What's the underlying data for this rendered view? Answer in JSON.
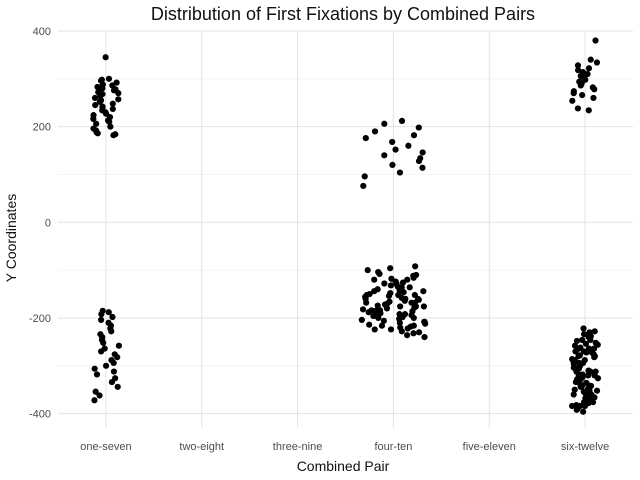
{
  "chart_data": {
    "type": "scatter",
    "title": "Distribution of First Fixations by Combined Pairs",
    "xlabel": "Combined Pair",
    "ylabel": "Y Coordinates",
    "categories": [
      "one-seven",
      "two-eight",
      "three-nine",
      "four-ten",
      "five-eleven",
      "six-twelve"
    ],
    "ylim": [
      -430,
      402
    ],
    "yticks": [
      400,
      200,
      0,
      -200,
      -400
    ],
    "grid": true,
    "point_color": "#000000",
    "series": [
      {
        "category": "one-seven",
        "points": [
          {
            "y": 345
          },
          {
            "y": 300
          },
          {
            "y": 298
          },
          {
            "y": 296
          },
          {
            "y": 292
          },
          {
            "y": 288
          },
          {
            "y": 286
          },
          {
            "y": 283
          },
          {
            "y": 280
          },
          {
            "y": 278
          },
          {
            "y": 276
          },
          {
            "y": 272
          },
          {
            "y": 270
          },
          {
            "y": 268
          },
          {
            "y": 264
          },
          {
            "y": 260
          },
          {
            "y": 257
          },
          {
            "y": 255
          },
          {
            "y": 252
          },
          {
            "y": 248
          },
          {
            "y": 245
          },
          {
            "y": 242
          },
          {
            "y": 240
          },
          {
            "y": 237
          },
          {
            "y": 234
          },
          {
            "y": 230
          },
          {
            "y": 227
          },
          {
            "y": 224
          },
          {
            "y": 220
          },
          {
            "y": 216
          },
          {
            "y": 213
          },
          {
            "y": 210
          },
          {
            "y": 206
          },
          {
            "y": 200
          },
          {
            "y": 196
          },
          {
            "y": 192
          },
          {
            "y": 188
          },
          {
            "y": 184
          },
          {
            "y": 182
          },
          {
            "y": 186
          },
          {
            "y": -185
          },
          {
            "y": -188
          },
          {
            "y": -192
          },
          {
            "y": -198
          },
          {
            "y": -204
          },
          {
            "y": -210
          },
          {
            "y": -216
          },
          {
            "y": -222
          },
          {
            "y": -228
          },
          {
            "y": -234
          },
          {
            "y": -240
          },
          {
            "y": -246
          },
          {
            "y": -252
          },
          {
            "y": -258
          },
          {
            "y": -264
          },
          {
            "y": -270
          },
          {
            "y": -276
          },
          {
            "y": -282
          },
          {
            "y": -288
          },
          {
            "y": -294
          },
          {
            "y": -300
          },
          {
            "y": -306
          },
          {
            "y": -312
          },
          {
            "y": -318
          },
          {
            "y": -326
          },
          {
            "y": -334
          },
          {
            "y": -344
          },
          {
            "y": -354
          },
          {
            "y": -362
          },
          {
            "y": -372
          }
        ]
      },
      {
        "category": "four-ten",
        "points": [
          {
            "y": 212
          },
          {
            "y": 206
          },
          {
            "y": 198
          },
          {
            "y": 190
          },
          {
            "y": 182
          },
          {
            "y": 176
          },
          {
            "y": 168
          },
          {
            "y": 160
          },
          {
            "y": 152
          },
          {
            "y": 146
          },
          {
            "y": 140
          },
          {
            "y": 134
          },
          {
            "y": 128
          },
          {
            "y": 120
          },
          {
            "y": 114
          },
          {
            "y": 104
          },
          {
            "y": 96
          },
          {
            "y": 76
          },
          {
            "y": -92
          },
          {
            "y": -96
          },
          {
            "y": -100
          },
          {
            "y": -104
          },
          {
            "y": -108
          },
          {
            "y": -112
          },
          {
            "y": -116
          },
          {
            "y": -120
          },
          {
            "y": -124
          },
          {
            "y": -128
          },
          {
            "y": -132
          },
          {
            "y": -136
          },
          {
            "y": -140
          },
          {
            "y": -144
          },
          {
            "y": -148
          },
          {
            "y": -152
          },
          {
            "y": -156
          },
          {
            "y": -160
          },
          {
            "y": -164
          },
          {
            "y": -168
          },
          {
            "y": -172
          },
          {
            "y": -176
          },
          {
            "y": -180
          },
          {
            "y": -184
          },
          {
            "y": -188
          },
          {
            "y": -192
          },
          {
            "y": -196
          },
          {
            "y": -200
          },
          {
            "y": -204
          },
          {
            "y": -208
          },
          {
            "y": -212
          },
          {
            "y": -216
          },
          {
            "y": -220
          },
          {
            "y": -224
          },
          {
            "y": -228
          },
          {
            "y": -232
          },
          {
            "y": -236
          },
          {
            "y": -240
          },
          {
            "y": -110
          },
          {
            "y": -118
          },
          {
            "y": -126
          },
          {
            "y": -134
          },
          {
            "y": -142
          },
          {
            "y": -150
          },
          {
            "y": -158
          },
          {
            "y": -166
          },
          {
            "y": -174
          },
          {
            "y": -182
          },
          {
            "y": -190
          },
          {
            "y": -198
          },
          {
            "y": -206
          },
          {
            "y": -214
          },
          {
            "y": -222
          },
          {
            "y": -230
          },
          {
            "y": -146
          },
          {
            "y": -154
          },
          {
            "y": -162
          },
          {
            "y": -170
          },
          {
            "y": -178
          },
          {
            "y": -186
          },
          {
            "y": -194
          },
          {
            "y": -202
          },
          {
            "y": -210
          },
          {
            "y": -218
          },
          {
            "y": -152
          },
          {
            "y": -160
          },
          {
            "y": -168
          },
          {
            "y": -176
          },
          {
            "y": -184
          },
          {
            "y": -192
          },
          {
            "y": -200
          },
          {
            "y": -208
          },
          {
            "y": -216
          },
          {
            "y": -224
          },
          {
            "y": -120
          },
          {
            "y": -128
          },
          {
            "y": -136
          },
          {
            "y": -144
          },
          {
            "y": -152
          },
          {
            "y": -160
          },
          {
            "y": -168
          },
          {
            "y": -176
          },
          {
            "y": -184
          },
          {
            "y": -192
          }
        ]
      },
      {
        "category": "six-twelve",
        "points": [
          {
            "y": 380
          },
          {
            "y": 340
          },
          {
            "y": 334
          },
          {
            "y": 328
          },
          {
            "y": 322
          },
          {
            "y": 318
          },
          {
            "y": 314
          },
          {
            "y": 310
          },
          {
            "y": 306
          },
          {
            "y": 302
          },
          {
            "y": 298
          },
          {
            "y": 294
          },
          {
            "y": 290
          },
          {
            "y": 286
          },
          {
            "y": 282
          },
          {
            "y": 278
          },
          {
            "y": 274
          },
          {
            "y": 270
          },
          {
            "y": 266
          },
          {
            "y": 260
          },
          {
            "y": 254
          },
          {
            "y": 238
          },
          {
            "y": 234
          },
          {
            "y": -222
          },
          {
            "y": -228
          },
          {
            "y": -234
          },
          {
            "y": -240
          },
          {
            "y": -246
          },
          {
            "y": -252
          },
          {
            "y": -258
          },
          {
            "y": -264
          },
          {
            "y": -270
          },
          {
            "y": -276
          },
          {
            "y": -282
          },
          {
            "y": -288
          },
          {
            "y": -294
          },
          {
            "y": -300
          },
          {
            "y": -306
          },
          {
            "y": -312
          },
          {
            "y": -318
          },
          {
            "y": -324
          },
          {
            "y": -330
          },
          {
            "y": -336
          },
          {
            "y": -342
          },
          {
            "y": -348
          },
          {
            "y": -354
          },
          {
            "y": -360
          },
          {
            "y": -366
          },
          {
            "y": -372
          },
          {
            "y": -378
          },
          {
            "y": -384
          },
          {
            "y": -390
          },
          {
            "y": -396
          },
          {
            "y": -230
          },
          {
            "y": -238
          },
          {
            "y": -246
          },
          {
            "y": -254
          },
          {
            "y": -262
          },
          {
            "y": -270
          },
          {
            "y": -278
          },
          {
            "y": -286
          },
          {
            "y": -294
          },
          {
            "y": -302
          },
          {
            "y": -310
          },
          {
            "y": -318
          },
          {
            "y": -326
          },
          {
            "y": -334
          },
          {
            "y": -342
          },
          {
            "y": -350
          },
          {
            "y": -358
          },
          {
            "y": -366
          },
          {
            "y": -374
          },
          {
            "y": -382
          },
          {
            "y": -264
          },
          {
            "y": -272
          },
          {
            "y": -280
          },
          {
            "y": -288
          },
          {
            "y": -296
          },
          {
            "y": -304
          },
          {
            "y": -312
          },
          {
            "y": -320
          },
          {
            "y": -328
          },
          {
            "y": -336
          },
          {
            "y": -344
          },
          {
            "y": -352
          },
          {
            "y": -360
          },
          {
            "y": -368
          },
          {
            "y": -376
          },
          {
            "y": -384
          },
          {
            "y": -392
          },
          {
            "y": -248
          },
          {
            "y": -256
          },
          {
            "y": -264
          },
          {
            "y": -272
          },
          {
            "y": -280
          },
          {
            "y": -288
          },
          {
            "y": -296
          },
          {
            "y": -304
          },
          {
            "y": -312
          },
          {
            "y": -320
          },
          {
            "y": -328
          },
          {
            "y": -336
          },
          {
            "y": -344
          },
          {
            "y": -352
          },
          {
            "y": -360
          },
          {
            "y": -368
          },
          {
            "y": -376
          },
          {
            "y": -384
          }
        ]
      }
    ]
  }
}
